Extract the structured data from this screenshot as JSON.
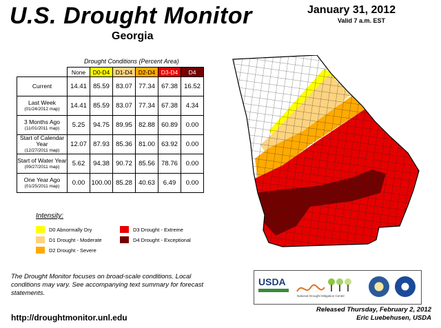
{
  "header": {
    "title": "U.S. Drought Monitor",
    "state": "Georgia",
    "date": "January 31, 2012",
    "valid": "Valid 7 a.m. EST"
  },
  "table": {
    "caption": "Drought Conditions (Percent Area)",
    "columns": [
      "None",
      "D0-D4",
      "D1-D4",
      "D2-D4",
      "D3-D4",
      "D4"
    ],
    "column_colors": [
      "#ffffff",
      "#ffff00",
      "#fcd37f",
      "#ffaa00",
      "#e60000",
      "#730000"
    ],
    "rows": [
      {
        "label": "Current",
        "sub": "",
        "values": [
          "14.41",
          "85.59",
          "83.07",
          "77.34",
          "67.38",
          "16.52"
        ]
      },
      {
        "label": "Last Week",
        "sub": "(01/24/2012 map)",
        "values": [
          "14.41",
          "85.59",
          "83.07",
          "77.34",
          "67.38",
          "4.34"
        ]
      },
      {
        "label": "3 Months Ago",
        "sub": "(11/01/2011 map)",
        "values": [
          "5.25",
          "94.75",
          "89.95",
          "82.88",
          "60.89",
          "0.00"
        ]
      },
      {
        "label": "Start of Calendar Year",
        "sub": "(12/27/2011 map)",
        "values": [
          "12.07",
          "87.93",
          "85.36",
          "81.00",
          "63.92",
          "0.00"
        ]
      },
      {
        "label": "Start of Water Year",
        "sub": "(09/27/2011 map)",
        "values": [
          "5.62",
          "94.38",
          "90.72",
          "85.56",
          "78.76",
          "0.00"
        ]
      },
      {
        "label": "One Year Ago",
        "sub": "(01/25/2011 map)",
        "values": [
          "0.00",
          "100.00",
          "85.28",
          "40.63",
          "6.49",
          "0.00"
        ]
      }
    ]
  },
  "legend": {
    "title": "Intensity:",
    "items": [
      {
        "label": "D0 Abnormally Dry",
        "color": "#ffff00"
      },
      {
        "label": "D1 Drought - Moderate",
        "color": "#fcd37f"
      },
      {
        "label": "D2 Drought - Severe",
        "color": "#ffaa00"
      },
      {
        "label": "D3 Drought - Extreme",
        "color": "#e60000"
      },
      {
        "label": "D4 Drought - Exceptional",
        "color": "#730000"
      }
    ]
  },
  "footer": {
    "note": "The Drought Monitor focuses on broad-scale conditions. Local conditions may vary. See accompanying text summary for forecast statements.",
    "url": "http://droughtmonitor.unl.edu",
    "released": "Released Thursday, February 2, 2012",
    "author": "Eric Luebehusen, USDA"
  },
  "logos": {
    "usda": "USDA",
    "ndmc": "National Drought Mitigation Center"
  },
  "map_colors": {
    "none": "#ffffff",
    "d0": "#ffff00",
    "d1": "#fcd37f",
    "d2": "#ffaa00",
    "d3": "#e60000",
    "d4": "#730000"
  }
}
